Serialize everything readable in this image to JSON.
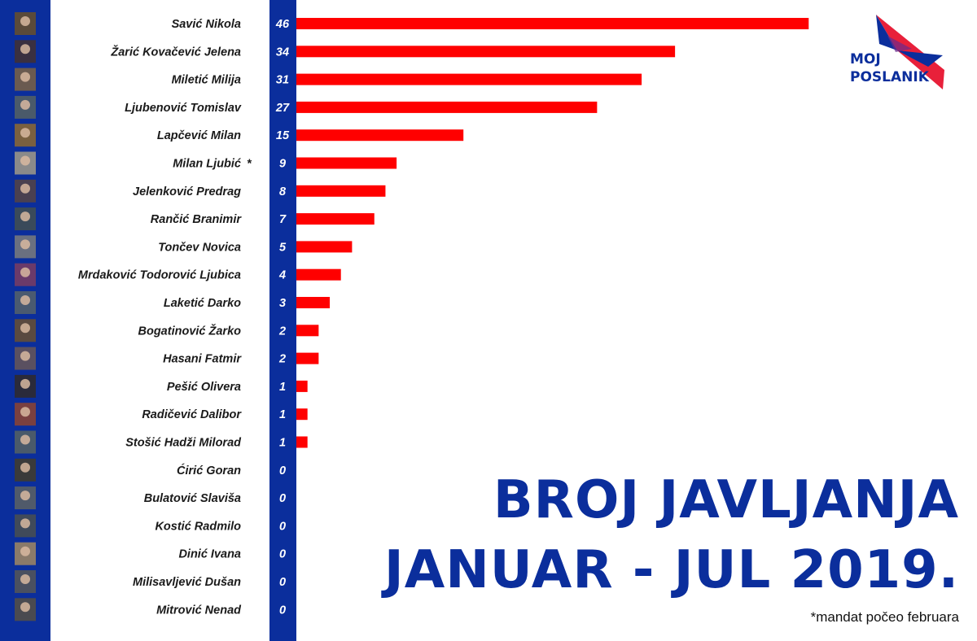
{
  "logo": {
    "line1": "MOJ",
    "line2": "POSLANIK"
  },
  "title": {
    "line1": "BROJ JAVLJANJA",
    "line2": "JANUAR - JUL 2019."
  },
  "footnote": "*mandat počeo februara",
  "colors": {
    "bar": "#ff0000",
    "strip": "#0b2e9c",
    "title": "#0b2e9c"
  },
  "chart_data": {
    "type": "bar",
    "orientation": "horizontal",
    "categories": [
      "Savić Nikola",
      "Žarić Kovačević Jelena",
      "Miletić Milija",
      "Ljubenović Tomislav",
      "Lapčević Milan",
      "Milan Ljubić",
      "Jelenković Predrag",
      "Rančić Branimir",
      "Tončev Novica",
      "Mrdaković Todorović Ljubica",
      "Laketić Darko",
      "Bogatinović Žarko",
      "Hasani Fatmir",
      "Pešić Olivera",
      "Radičević Dalibor",
      "Stošić Hadži Milorad",
      "Ćirić Goran",
      "Bulatović Slaviša",
      "Kostić Radmilo",
      "Dinić Ivana",
      "Milisavljević Dušan",
      "Mitrović Nenad"
    ],
    "values": [
      46,
      34,
      31,
      27,
      15,
      9,
      8,
      7,
      5,
      4,
      3,
      2,
      2,
      1,
      1,
      1,
      0,
      0,
      0,
      0,
      0,
      0
    ],
    "markers": {
      "Milan Ljubić": "*"
    }
  }
}
